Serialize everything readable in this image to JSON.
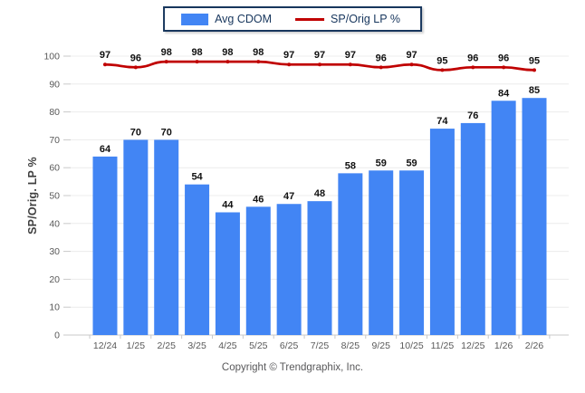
{
  "chart_data": {
    "type": "bar",
    "title": "",
    "categories": [
      "12/24",
      "1/25",
      "2/25",
      "3/25",
      "4/25",
      "5/25",
      "6/25",
      "7/25",
      "8/25",
      "9/25",
      "10/25",
      "11/25",
      "12/25",
      "1/26",
      "2/26"
    ],
    "series": [
      {
        "name": "Avg CDOM",
        "type": "bar",
        "color": "#4285f4",
        "values": [
          64,
          70,
          70,
          54,
          44,
          46,
          47,
          48,
          58,
          59,
          59,
          74,
          76,
          84,
          85
        ]
      },
      {
        "name": "SP/Orig LP %",
        "type": "line",
        "color": "#c00000",
        "values": [
          97,
          96,
          98,
          98,
          98,
          98,
          97,
          97,
          97,
          96,
          97,
          95,
          96,
          96,
          95
        ]
      }
    ],
    "xlabel": "",
    "ylabel": "SP/Orig. LP %",
    "ylim": [
      0,
      100
    ],
    "yticks": [
      0,
      10,
      20,
      30,
      40,
      50,
      60,
      70,
      80,
      90,
      100
    ],
    "grid": "horizontal",
    "legend_position": "top-center",
    "colors": {
      "bar": "#4285f4",
      "line": "#c00000",
      "gridline": "#ececec",
      "axis": "#c9c9c9",
      "tick_text": "#595959",
      "value_text": "#111111",
      "legend_border": "#17365d"
    }
  },
  "footer": {
    "copyright": "Copyright © Trendgraphix, Inc."
  }
}
